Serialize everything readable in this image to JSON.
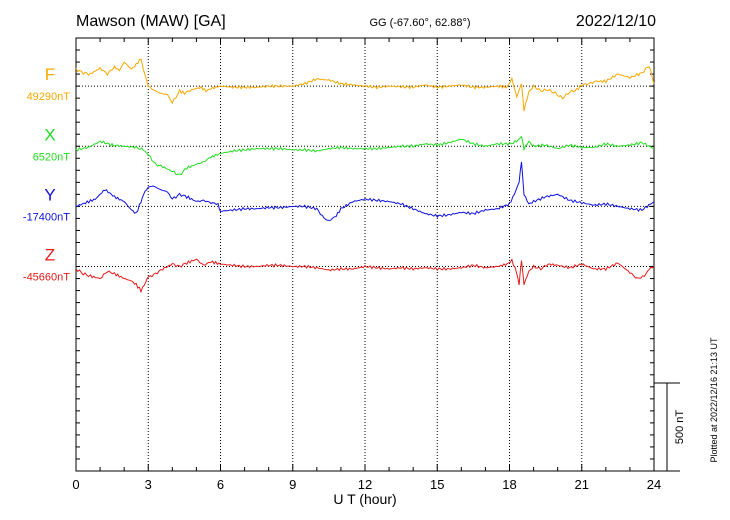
{
  "header": {
    "station": "Mawson (MAW)  [GA]",
    "coords": "GG (-67.60°,  62.88°)",
    "date": "2022/12/10"
  },
  "side_note": "Plotted at 2022/12/16 21:13 UT",
  "scale_label": "500 nT",
  "chart_data": {
    "type": "line",
    "xlabel": "U T (hour)",
    "xlim": [
      0,
      24
    ],
    "xticks": [
      "0",
      "3",
      "6",
      "9",
      "12",
      "15",
      "18",
      "21",
      "24"
    ],
    "ylim_nT": [
      -1700,
      1900
    ],
    "grid": "vertical dotted at 3-hour intervals; dotted baseline for each component",
    "series": [
      {
        "name": "F",
        "baseline_label": "49290nT",
        "color": "#f5a800",
        "offset_nT": 1500,
        "x": [
          0,
          0.3,
          0.6,
          1.0,
          1.3,
          1.6,
          1.8,
          2.0,
          2.3,
          2.5,
          2.7,
          2.8,
          3.0,
          3.2,
          3.5,
          3.8,
          4.0,
          4.3,
          4.5,
          4.8,
          5.0,
          5.2,
          5.4,
          5.6,
          5.8,
          6.0,
          6.5,
          7.0,
          7.5,
          8.0,
          8.5,
          9.0,
          9.5,
          10.0,
          10.5,
          11.0,
          11.5,
          12.0,
          12.5,
          13.0,
          13.5,
          14.0,
          14.5,
          15.0,
          15.5,
          16.0,
          16.5,
          17.0,
          17.5,
          17.9,
          18.1,
          18.3,
          18.5,
          18.6,
          18.8,
          19.0,
          19.3,
          19.6,
          19.9,
          20.2,
          20.5,
          20.8,
          21.0,
          21.3,
          21.6,
          22.0,
          22.5,
          23.0,
          23.5,
          23.8,
          24.0
        ],
        "y": [
          140,
          110,
          100,
          150,
          100,
          160,
          130,
          200,
          140,
          180,
          230,
          140,
          0,
          -30,
          -60,
          -70,
          -140,
          -40,
          -60,
          -30,
          -20,
          -10,
          -40,
          -20,
          -10,
          0,
          -10,
          -10,
          -10,
          0,
          0,
          0,
          20,
          60,
          50,
          20,
          10,
          0,
          -10,
          0,
          -5,
          -10,
          10,
          -10,
          0,
          10,
          -10,
          -10,
          0,
          -10,
          60,
          -90,
          20,
          -200,
          -50,
          0,
          -40,
          -30,
          -60,
          -100,
          -50,
          -30,
          10,
          20,
          40,
          40,
          100,
          70,
          110,
          170,
          20
        ]
      },
      {
        "name": "X",
        "baseline_label": "6520nT",
        "color": "#22dd22",
        "offset_nT": 1000,
        "x": [
          0,
          0.5,
          1.0,
          1.5,
          2.0,
          2.5,
          2.8,
          3.0,
          3.3,
          3.6,
          4.0,
          4.3,
          4.6,
          5.0,
          5.3,
          5.6,
          6.0,
          6.5,
          7.0,
          7.5,
          8.0,
          8.5,
          9.0,
          9.5,
          10.0,
          10.5,
          11.0,
          11.5,
          12.0,
          12.5,
          13.0,
          13.5,
          14.0,
          14.5,
          15.0,
          15.5,
          16.0,
          16.5,
          17.0,
          17.5,
          18.0,
          18.3,
          18.5,
          18.6,
          18.8,
          19.0,
          19.5,
          20.0,
          20.5,
          21.0,
          21.5,
          22.0,
          22.5,
          23.0,
          23.5,
          24.0
        ],
        "y": [
          -30,
          -10,
          40,
          10,
          0,
          -10,
          -30,
          -70,
          -150,
          -170,
          -210,
          -240,
          -180,
          -150,
          -130,
          -90,
          -60,
          -40,
          -30,
          -20,
          -20,
          -20,
          -30,
          -30,
          -40,
          -20,
          -10,
          -20,
          -20,
          -20,
          -10,
          0,
          0,
          20,
          10,
          30,
          60,
          20,
          0,
          20,
          20,
          40,
          80,
          -20,
          40,
          0,
          10,
          -20,
          10,
          -10,
          -10,
          20,
          0,
          10,
          30,
          -20
        ]
      },
      {
        "name": "Y",
        "baseline_label": "-17400nT",
        "color": "#1010dd",
        "offset_nT": 500,
        "x": [
          0,
          0.4,
          0.8,
          1.2,
          1.6,
          2.0,
          2.3,
          2.5,
          2.7,
          2.8,
          3.0,
          3.2,
          3.5,
          3.8,
          4.0,
          4.3,
          4.6,
          5.0,
          5.3,
          5.6,
          5.9,
          6.0,
          6.5,
          7.0,
          7.5,
          8.0,
          8.5,
          9.0,
          9.5,
          10.0,
          10.3,
          10.5,
          10.8,
          11.0,
          11.5,
          12.0,
          12.5,
          13.0,
          13.5,
          14.0,
          14.5,
          15.0,
          15.5,
          16.0,
          16.5,
          17.0,
          17.5,
          18.0,
          18.2,
          18.4,
          18.5,
          18.6,
          18.8,
          19.0,
          19.5,
          20.0,
          20.5,
          21.0,
          21.5,
          22.0,
          22.5,
          23.0,
          23.5,
          24.0
        ],
        "y": [
          0,
          30,
          60,
          140,
          80,
          40,
          -30,
          -60,
          40,
          100,
          160,
          170,
          140,
          120,
          60,
          100,
          80,
          40,
          50,
          30,
          20,
          -40,
          -30,
          -20,
          -20,
          -10,
          -10,
          0,
          0,
          -20,
          -100,
          -120,
          -80,
          -20,
          40,
          60,
          50,
          40,
          20,
          -20,
          -60,
          -80,
          -70,
          -50,
          -60,
          -30,
          -20,
          20,
          100,
          200,
          370,
          100,
          20,
          40,
          80,
          100,
          50,
          30,
          10,
          20,
          0,
          -20,
          -30,
          40
        ]
      },
      {
        "name": "Z",
        "baseline_label": "-45660nT",
        "color": "#e81a1a",
        "offset_nT": 0,
        "x": [
          0,
          0.3,
          0.6,
          1.0,
          1.3,
          1.6,
          2.0,
          2.3,
          2.5,
          2.7,
          2.9,
          3.0,
          3.3,
          3.6,
          4.0,
          4.3,
          4.6,
          5.0,
          5.3,
          5.6,
          6.0,
          6.5,
          7.0,
          7.5,
          8.0,
          8.5,
          9.0,
          9.5,
          10.0,
          10.5,
          11.0,
          11.5,
          12.0,
          12.5,
          13.0,
          13.5,
          14.0,
          14.5,
          15.0,
          15.5,
          16.0,
          16.5,
          17.0,
          17.5,
          17.9,
          18.1,
          18.3,
          18.4,
          18.5,
          18.6,
          18.8,
          19.0,
          19.3,
          19.6,
          20.0,
          20.5,
          21.0,
          21.5,
          22.0,
          22.5,
          23.0,
          23.3,
          23.6,
          23.8,
          24.0
        ],
        "y": [
          -20,
          -60,
          -80,
          -100,
          -40,
          -60,
          -100,
          -120,
          -150,
          -200,
          -130,
          -90,
          -60,
          -20,
          20,
          0,
          30,
          60,
          10,
          40,
          20,
          10,
          0,
          0,
          10,
          10,
          0,
          0,
          -10,
          -30,
          -20,
          -20,
          0,
          -10,
          -20,
          -10,
          -20,
          -10,
          -20,
          -20,
          -10,
          10,
          -10,
          0,
          20,
          50,
          -50,
          -150,
          50,
          -150,
          -40,
          0,
          -20,
          20,
          10,
          -10,
          20,
          -20,
          -20,
          30,
          -50,
          -100,
          -80,
          -20,
          0
        ]
      }
    ],
    "scale_bar_nT": 500
  }
}
